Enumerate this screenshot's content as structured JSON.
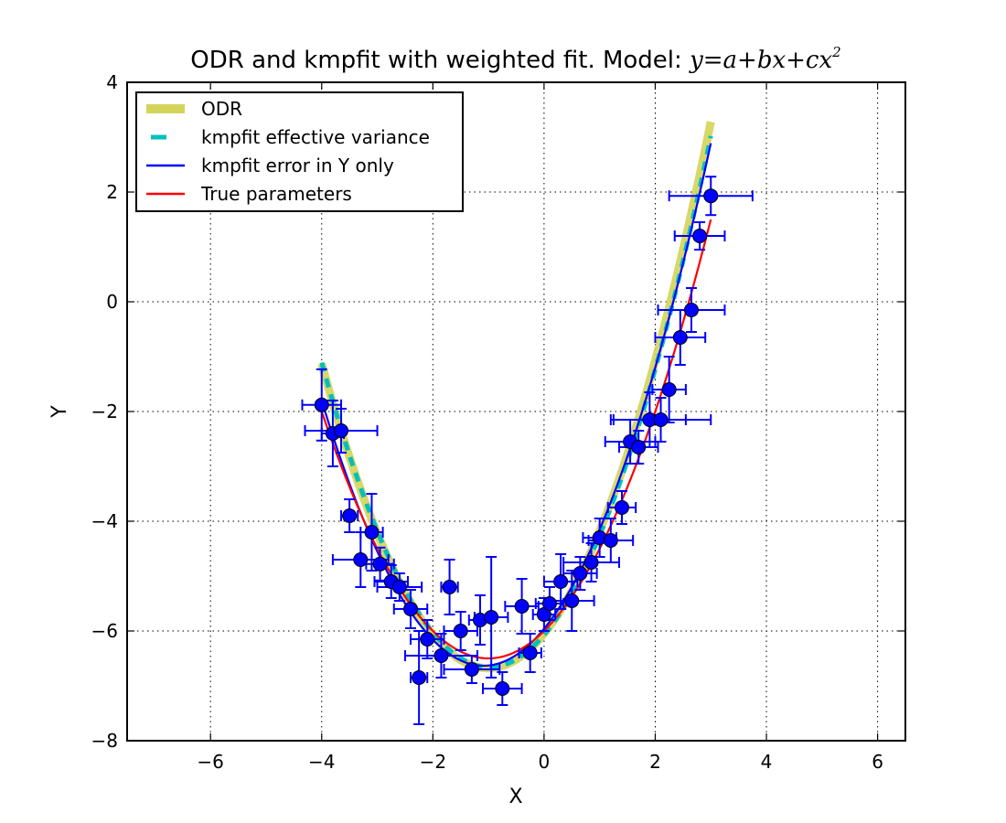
{
  "chart_data": {
    "type": "scatter",
    "title_text": "ODR and kmpfit with weighted fit. Model: ",
    "title_formula": "y=a+bx+cx",
    "title_formula_exp": "2",
    "xlabel": "X",
    "ylabel": "Y",
    "xlim": [
      -7.5,
      6.5
    ],
    "ylim": [
      -8,
      4
    ],
    "xticks": [
      -6,
      -4,
      -2,
      0,
      2,
      4,
      6
    ],
    "xtick_labels": [
      "−6",
      "−4",
      "−2",
      "0",
      "2",
      "4",
      "6"
    ],
    "yticks": [
      -8,
      -6,
      -4,
      -2,
      0,
      2,
      4
    ],
    "ytick_labels": [
      "−8",
      "−6",
      "−4",
      "−2",
      "0",
      "2",
      "4"
    ],
    "grid": true,
    "grid_style": "dotted",
    "legend_position": "top-left",
    "legend": [
      {
        "label": "ODR",
        "color": "#d4d45a",
        "style": "thick"
      },
      {
        "label": "kmpfit effective variance",
        "color": "#00bfbf",
        "style": "dashed"
      },
      {
        "label": "kmpfit error in Y only",
        "color": "#0000ff",
        "style": "solid"
      },
      {
        "label": "True parameters",
        "color": "#ff0000",
        "style": "solid"
      }
    ],
    "series": [
      {
        "name": "ODR",
        "color": "#d4d45a",
        "x_range": [
          -4.0,
          3.0
        ],
        "coefficients": {
          "a": -6.05,
          "b": 1.25,
          "c": 0.62
        }
      },
      {
        "name": "kmpfit effective variance",
        "color": "#00bfbf",
        "x_range": [
          -4.0,
          3.0
        ],
        "coefficients": {
          "a": -6.07,
          "b": 1.2,
          "c": 0.61
        }
      },
      {
        "name": "kmpfit error in Y only",
        "color": "#0000ff",
        "x_range": [
          -4.0,
          3.0
        ],
        "coefficients": {
          "a": -5.96,
          "b": 1.24,
          "c": 0.57
        }
      },
      {
        "name": "True parameters",
        "color": "#ff0000",
        "x_range": [
          -4.0,
          3.0
        ],
        "coefficients": {
          "a": -6.0,
          "b": 1.0,
          "c": 0.5
        }
      }
    ],
    "data_points": {
      "marker_color": "#0000ff",
      "errorbar_color": "#0000ff",
      "points": [
        {
          "x": -4.0,
          "y": -1.88,
          "xerr": 0.35,
          "yerr": 0.65
        },
        {
          "x": -3.8,
          "y": -2.4,
          "xerr": 0.2,
          "yerr": 0.6
        },
        {
          "x": -3.65,
          "y": -2.35,
          "xerr": 0.65,
          "yerr": 0.4
        },
        {
          "x": -3.5,
          "y": -3.9,
          "xerr": 0.15,
          "yerr": 0.3
        },
        {
          "x": -3.3,
          "y": -4.7,
          "xerr": 0.5,
          "yerr": 0.5
        },
        {
          "x": -3.1,
          "y": -4.2,
          "xerr": 0.2,
          "yerr": 0.7
        },
        {
          "x": -2.95,
          "y": -4.78,
          "xerr": 0.25,
          "yerr": 0.3
        },
        {
          "x": -2.75,
          "y": -5.1,
          "xerr": 0.3,
          "yerr": 0.3
        },
        {
          "x": -2.6,
          "y": -5.2,
          "xerr": 0.4,
          "yerr": 0.25
        },
        {
          "x": -2.4,
          "y": -5.6,
          "xerr": 0.3,
          "yerr": 0.35
        },
        {
          "x": -2.25,
          "y": -6.85,
          "xerr": 0.15,
          "yerr": 0.85
        },
        {
          "x": -2.1,
          "y": -6.15,
          "xerr": 0.3,
          "yerr": 0.35
        },
        {
          "x": -1.85,
          "y": -6.45,
          "xerr": 0.65,
          "yerr": 0.4
        },
        {
          "x": -1.7,
          "y": -5.2,
          "xerr": 0.15,
          "yerr": 0.5
        },
        {
          "x": -1.5,
          "y": -6.0,
          "xerr": 0.3,
          "yerr": 0.35
        },
        {
          "x": -1.3,
          "y": -6.7,
          "xerr": 0.5,
          "yerr": 0.25
        },
        {
          "x": -1.15,
          "y": -5.8,
          "xerr": 0.2,
          "yerr": 0.45
        },
        {
          "x": -0.95,
          "y": -5.75,
          "xerr": 0.3,
          "yerr": 1.1
        },
        {
          "x": -0.75,
          "y": -7.05,
          "xerr": 0.35,
          "yerr": 0.3
        },
        {
          "x": -0.4,
          "y": -5.55,
          "xerr": 0.3,
          "yerr": 0.5
        },
        {
          "x": -0.25,
          "y": -6.4,
          "xerr": 0.2,
          "yerr": 0.35
        },
        {
          "x": 0.0,
          "y": -5.7,
          "xerr": 0.2,
          "yerr": 0.3
        },
        {
          "x": 0.1,
          "y": -5.5,
          "xerr": 0.25,
          "yerr": 0.3
        },
        {
          "x": 0.3,
          "y": -5.1,
          "xerr": 0.3,
          "yerr": 0.5
        },
        {
          "x": 0.5,
          "y": -5.45,
          "xerr": 0.4,
          "yerr": 0.55
        },
        {
          "x": 0.65,
          "y": -4.95,
          "xerr": 0.3,
          "yerr": 0.3
        },
        {
          "x": 0.85,
          "y": -4.75,
          "xerr": 0.5,
          "yerr": 0.35
        },
        {
          "x": 1.0,
          "y": -4.3,
          "xerr": 0.3,
          "yerr": 0.35
        },
        {
          "x": 1.2,
          "y": -4.35,
          "xerr": 0.4,
          "yerr": 0.4
        },
        {
          "x": 1.4,
          "y": -3.75,
          "xerr": 0.25,
          "yerr": 0.3
        },
        {
          "x": 1.55,
          "y": -2.55,
          "xerr": 0.45,
          "yerr": 0.4
        },
        {
          "x": 1.7,
          "y": -2.65,
          "xerr": 0.35,
          "yerr": 0.3
        },
        {
          "x": 1.9,
          "y": -2.15,
          "xerr": 0.65,
          "yerr": 0.5
        },
        {
          "x": 2.1,
          "y": -2.15,
          "xerr": 0.9,
          "yerr": 0.4
        },
        {
          "x": 2.25,
          "y": -1.6,
          "xerr": 0.3,
          "yerr": 0.6
        },
        {
          "x": 2.45,
          "y": -0.65,
          "xerr": 0.45,
          "yerr": 0.5
        },
        {
          "x": 2.65,
          "y": -0.15,
          "xerr": 0.6,
          "yerr": 0.4
        },
        {
          "x": 2.8,
          "y": 1.2,
          "xerr": 0.45,
          "yerr": 0.25
        },
        {
          "x": 3.0,
          "y": 1.93,
          "xerr": 0.75,
          "yerr": 0.35
        }
      ]
    }
  }
}
